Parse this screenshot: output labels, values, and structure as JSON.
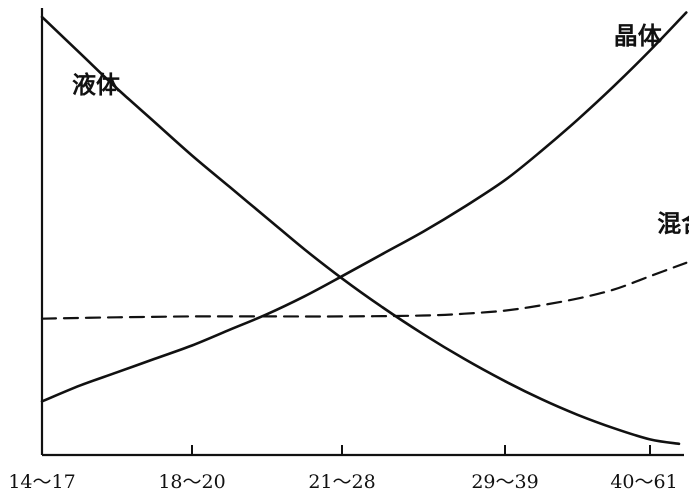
{
  "chart_data": {
    "type": "line",
    "title": "",
    "xlabel": "",
    "ylabel": "",
    "categories": [
      "14～17",
      "18～20",
      "21～28",
      "29～39",
      "40～61"
    ],
    "x_axis_ticks": [
      "14～17",
      "18～20",
      "21～28",
      "29～39",
      "40～61"
    ],
    "y_axis_ticks": [],
    "grid": false,
    "legend": "none",
    "series": [
      {
        "name": "液体",
        "style": "solid",
        "color": "#111111",
        "x": [
          0,
          0.25,
          0.5,
          0.75,
          1,
          1.25,
          1.5,
          1.75,
          2,
          2.25,
          2.5,
          2.75,
          3,
          3.25,
          3.5,
          3.75,
          4,
          4.2
        ],
        "y": [
          98,
          90,
          82,
          74.5,
          67,
          60,
          53,
          46,
          39.5,
          33,
          27,
          21.5,
          16.5,
          12.5,
          9,
          6,
          3.5,
          2.5
        ]
      },
      {
        "name": "晶体",
        "style": "solid",
        "color": "#111111",
        "x": [
          0,
          0.25,
          0.5,
          0.75,
          1,
          1.25,
          1.5,
          1.75,
          2,
          2.25,
          2.5,
          2.75,
          3,
          3.25,
          3.5,
          3.75,
          4,
          4.25
        ],
        "y": [
          12,
          15.5,
          18.5,
          21.5,
          24.5,
          28,
          31.5,
          35.5,
          40,
          45,
          50,
          55.5,
          61.5,
          68,
          75,
          82.5,
          90.5,
          99
        ]
      },
      {
        "name": "混合",
        "style": "dashed",
        "color": "#111111",
        "x": [
          0,
          0.5,
          1,
          1.5,
          2,
          2.5,
          2.75,
          3,
          3.25,
          3.5,
          3.75,
          4,
          4.25
        ],
        "y": [
          30.5,
          30.8,
          31,
          31,
          31,
          31.2,
          31.6,
          32.3,
          33.5,
          35,
          37,
          40,
          43
        ]
      }
    ],
    "annotations": [
      {
        "text": "液体",
        "x": 0.2,
        "y": 81
      },
      {
        "text": "晶体",
        "x": 3.75,
        "y": 92
      },
      {
        "text": "混合",
        "x": 4.05,
        "y": 50
      }
    ],
    "xlim": [
      0,
      4.25
    ],
    "ylim": [
      0,
      100
    ]
  }
}
